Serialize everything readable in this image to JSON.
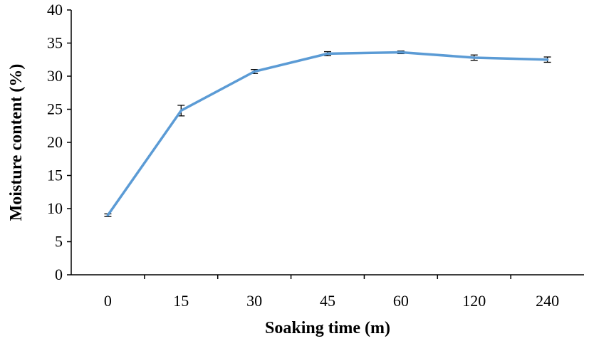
{
  "chart_data": {
    "type": "line",
    "title": "",
    "xlabel": "Soaking time (m)",
    "ylabel": "Moisture content (%)",
    "categories": [
      "0",
      "15",
      "30",
      "45",
      "60",
      "120",
      "240"
    ],
    "ylim": [
      0,
      40
    ],
    "yticks": [
      0,
      5,
      10,
      15,
      20,
      25,
      30,
      35,
      40
    ],
    "grid": false,
    "legend": "none",
    "series": [
      {
        "values": [
          9.0,
          24.8,
          30.7,
          33.4,
          33.6,
          32.8,
          32.5
        ],
        "errors": [
          0.2,
          0.8,
          0.3,
          0.3,
          0.2,
          0.4,
          0.4
        ],
        "color": "#5B9BD5"
      }
    ]
  }
}
